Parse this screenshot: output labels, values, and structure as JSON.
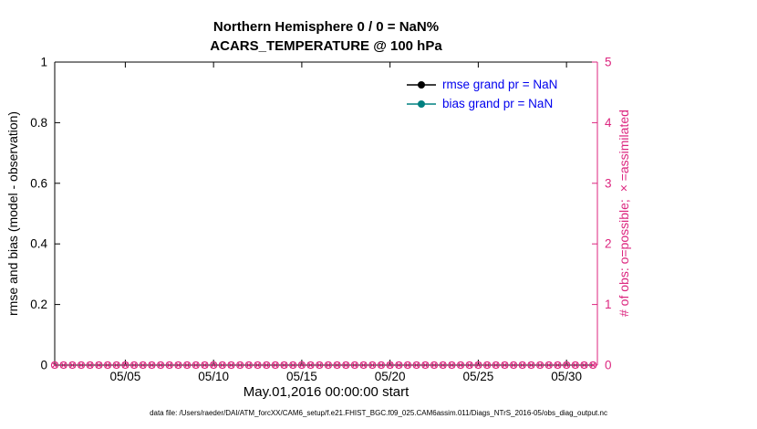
{
  "figure": {
    "title_line1": "Northern Hemisphere 0 / 0 = NaN%",
    "title_line2": "ACARS_TEMPERATURE @ 100 hPa",
    "footer": "data file: /Users/raeder/DAI/ATM_forcXX/CAM6_setup/f.e21.FHIST_BGC.f09_025.CAM6assim.011/Diags_NTrS_2016-05/obs_diag_output.nc"
  },
  "legend": {
    "text_color": "#0000ee",
    "items": [
      {
        "label": "rmse grand pr = NaN",
        "color": "#000000"
      },
      {
        "label": "bias grand pr = NaN",
        "color": "#008080"
      }
    ]
  },
  "colors": {
    "left_axis": "#000000",
    "right_axis": "#dc267f",
    "obs_markers": "#dc267f"
  },
  "chart_data": {
    "type": "line",
    "title": "Northern Hemisphere 0 / 0 = NaN%",
    "subtitle": "ACARS_TEMPERATURE @ 100 hPa",
    "xlabel": "May.01,2016 00:00:00 start",
    "ylabel_left": "rmse and bias (model - observation)",
    "ylabel_right": "# of obs: o=possible; ×=assimilated",
    "x_range_days": [
      0,
      30.75
    ],
    "x_tick_days": [
      4,
      9,
      14,
      19,
      24,
      29
    ],
    "x_tick_labels": [
      "05/05",
      "05/10",
      "05/15",
      "05/20",
      "05/25",
      "05/30"
    ],
    "ylim_left": [
      0,
      1
    ],
    "yticks_left": [
      "0",
      "0.2",
      "0.4",
      "0.6",
      "0.8",
      "1"
    ],
    "ylim_right": [
      0,
      5
    ],
    "yticks_right": [
      "0",
      "1",
      "2",
      "3",
      "4",
      "5"
    ],
    "grid": false,
    "legend_position": "top-right-inside",
    "series": [
      {
        "name": "rmse grand pr = NaN",
        "axis": "left",
        "values": [],
        "note": "all values NaN, nothing plotted"
      },
      {
        "name": "bias grand pr = NaN",
        "axis": "left",
        "values": [],
        "note": "all values NaN, nothing plotted"
      }
    ],
    "obs_markers": {
      "description": "o=possible and x=assimilated markers overlapped along the x-axis at count 0",
      "value": 0,
      "start_day": 0,
      "end_day": 30.5,
      "step_days": 0.5
    }
  }
}
